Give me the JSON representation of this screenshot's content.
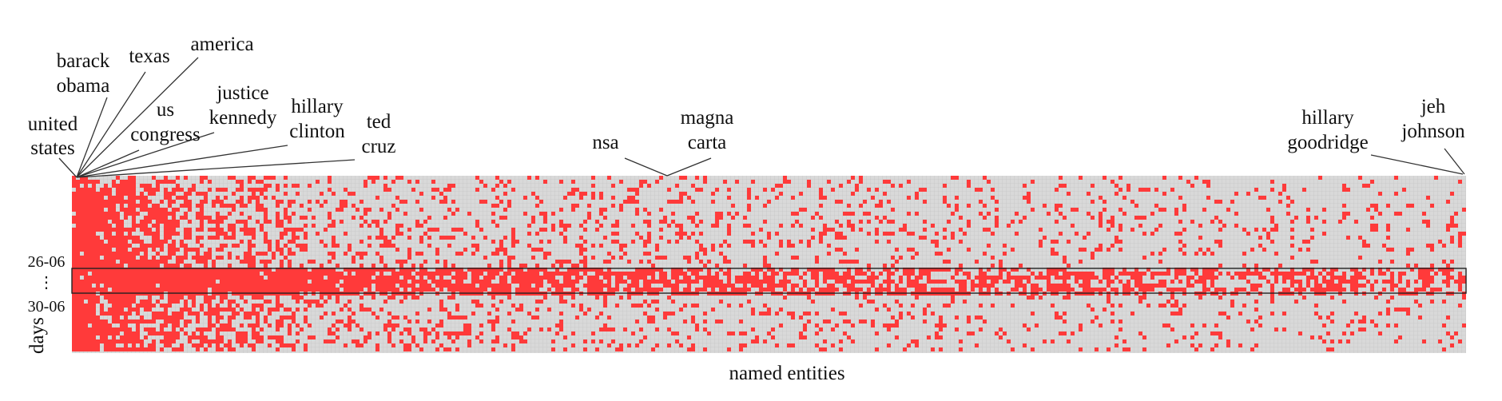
{
  "chart_data": {
    "type": "heatmap",
    "title": "",
    "xlabel": "named entities",
    "ylabel": "days",
    "colors": {
      "present": "#ff3a3a",
      "absent": "#d8d8d8",
      "highlight_border": "#222222"
    },
    "grid": true,
    "legend": "none",
    "y_ticks": [
      "26-06",
      "⋮",
      "30-06"
    ],
    "highlighted_days": {
      "from": "26-06",
      "to": "30-06"
    },
    "entity_annotations": [
      {
        "lines": [
          "united",
          "states"
        ],
        "rank": 1
      },
      {
        "lines": [
          "barack",
          "obama"
        ],
        "rank": 2
      },
      {
        "lines": [
          "texas"
        ],
        "rank": 3
      },
      {
        "lines": [
          "america"
        ],
        "rank": 4
      },
      {
        "lines": [
          "us",
          "congress"
        ],
        "rank": 5
      },
      {
        "lines": [
          "justice",
          "kennedy"
        ],
        "rank": 6
      },
      {
        "lines": [
          "hillary",
          "clinton"
        ],
        "rank": 7
      },
      {
        "lines": [
          "ted",
          "cruz"
        ],
        "rank": 8
      },
      {
        "lines": [
          "nsa"
        ],
        "rank": 550
      },
      {
        "lines": [
          "magna",
          "carta"
        ],
        "rank": 551
      },
      {
        "lines": [
          "hillary",
          "goodridge"
        ],
        "rank": 1559
      },
      {
        "lines": [
          "jeh",
          "johnson"
        ],
        "rank": 1560
      }
    ]
  }
}
